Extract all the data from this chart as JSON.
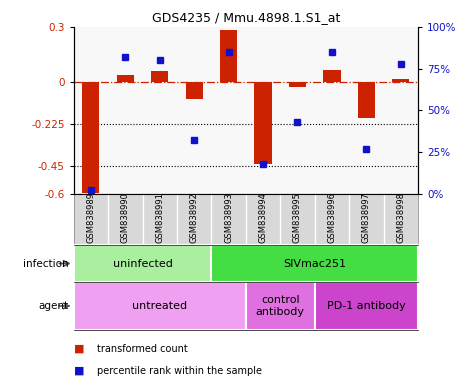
{
  "title": "GDS4235 / Mmu.4898.1.S1_at",
  "samples": [
    "GSM838989",
    "GSM838990",
    "GSM838991",
    "GSM838992",
    "GSM838993",
    "GSM838994",
    "GSM838995",
    "GSM838996",
    "GSM838997",
    "GSM838998"
  ],
  "transformed_count": [
    -0.595,
    0.04,
    0.06,
    -0.09,
    0.285,
    -0.44,
    -0.025,
    0.07,
    -0.19,
    0.02
  ],
  "percentile_rank": [
    2,
    82,
    80,
    32,
    85,
    18,
    43,
    85,
    27,
    78
  ],
  "infection_groups": [
    {
      "label": "uninfected",
      "start": 0,
      "end": 3,
      "color": "#aaeea0"
    },
    {
      "label": "SIVmac251",
      "start": 4,
      "end": 9,
      "color": "#44dd44"
    }
  ],
  "agent_groups": [
    {
      "label": "untreated",
      "start": 0,
      "end": 4,
      "color": "#f0a0f0"
    },
    {
      "label": "control\nantibody",
      "start": 5,
      "end": 6,
      "color": "#e070e0"
    },
    {
      "label": "PD-1 antibody",
      "start": 7,
      "end": 9,
      "color": "#cc44cc"
    }
  ],
  "bar_color": "#cc2200",
  "dot_color": "#1111cc",
  "ylim_left": [
    -0.6,
    0.3
  ],
  "ylim_right": [
    0,
    100
  ],
  "yticks_left": [
    -0.6,
    -0.45,
    -0.225,
    0,
    0.3
  ],
  "ytick_labels_left": [
    "-0.6",
    "-0.45",
    "-0.225",
    "0",
    "0.3"
  ],
  "yticks_right": [
    0,
    25,
    50,
    75,
    100
  ],
  "ytick_labels_right": [
    "0%",
    "25%",
    "50%",
    "75%",
    "100%"
  ],
  "hline_y": 0,
  "dotted_lines": [
    -0.225,
    -0.45
  ],
  "samples_bg": "#d8d8d8",
  "plot_bg": "#f8f8f8"
}
